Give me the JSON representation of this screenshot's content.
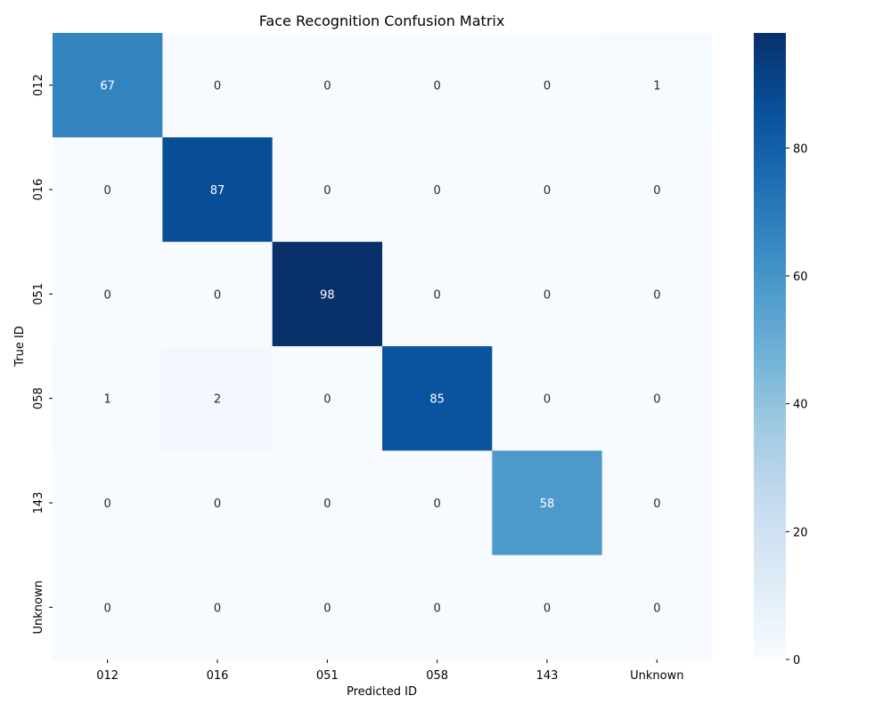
{
  "chart_data": {
    "type": "heatmap",
    "title": "Face Recognition Confusion Matrix",
    "xlabel": "Predicted ID",
    "ylabel": "True ID",
    "x_categories": [
      "012",
      "016",
      "051",
      "058",
      "143",
      "Unknown"
    ],
    "y_categories": [
      "012",
      "016",
      "051",
      "058",
      "143",
      "Unknown"
    ],
    "values": [
      [
        67,
        0,
        0,
        0,
        0,
        1
      ],
      [
        0,
        87,
        0,
        0,
        0,
        0
      ],
      [
        0,
        0,
        98,
        0,
        0,
        0
      ],
      [
        1,
        2,
        0,
        85,
        0,
        0
      ],
      [
        0,
        0,
        0,
        0,
        58,
        0
      ],
      [
        0,
        0,
        0,
        0,
        0,
        0
      ]
    ],
    "colormap": "Blues",
    "colorbar": {
      "min": 0,
      "max": 98,
      "ticks": [
        0,
        20,
        40,
        60,
        80
      ]
    },
    "annotations": true,
    "grid": false
  }
}
